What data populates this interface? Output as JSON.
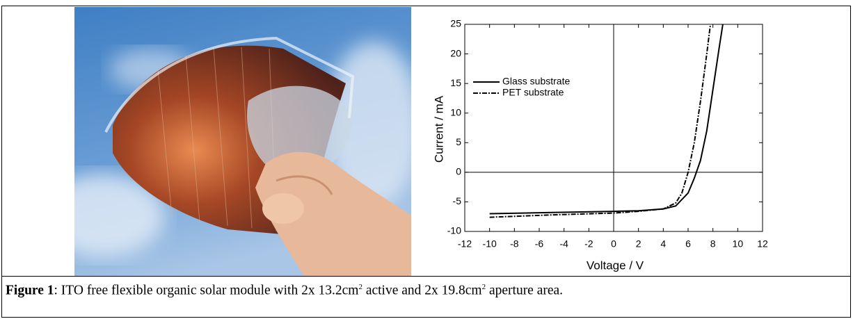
{
  "chart_data": {
    "type": "line",
    "x_label": "Voltage / V",
    "y_label": "Current / mA",
    "xlim": [
      -12,
      12
    ],
    "xticks": [
      -12,
      -10,
      -8,
      -6,
      -4,
      -2,
      0,
      2,
      4,
      6,
      8,
      10,
      12
    ],
    "ylim": [
      -10,
      25
    ],
    "yticks": [
      -10,
      -5,
      0,
      5,
      10,
      15,
      20,
      25
    ],
    "zero_lines": true,
    "series": [
      {
        "name": "Glass substrate",
        "color": "#000000",
        "dash": "solid",
        "x": [
          -10,
          -5,
          0,
          2,
          4,
          5,
          6,
          6.5,
          7,
          7.5,
          8,
          8.5,
          8.8
        ],
        "values": [
          -7.0,
          -6.8,
          -6.6,
          -6.5,
          -6.2,
          -5.7,
          -3.5,
          -1,
          2,
          7,
          14,
          21,
          25
        ]
      },
      {
        "name": "PET substrate",
        "color": "#000000",
        "dash": "dashdot",
        "x": [
          -10,
          -5,
          0,
          2,
          4,
          5,
          5.5,
          6,
          6.5,
          7,
          7.5,
          7.8
        ],
        "values": [
          -7.6,
          -7.2,
          -6.9,
          -6.6,
          -6.2,
          -5.2,
          -3.5,
          0,
          5,
          12,
          20,
          25
        ]
      }
    ]
  },
  "caption": {
    "label": "Figure 1",
    "part1": ": ITO free flexible organic solar module with 2x 13.2cm",
    "sup1": "2",
    "part2": " active and 2x 19.8cm",
    "sup2": "2",
    "part3": " aperture area."
  }
}
